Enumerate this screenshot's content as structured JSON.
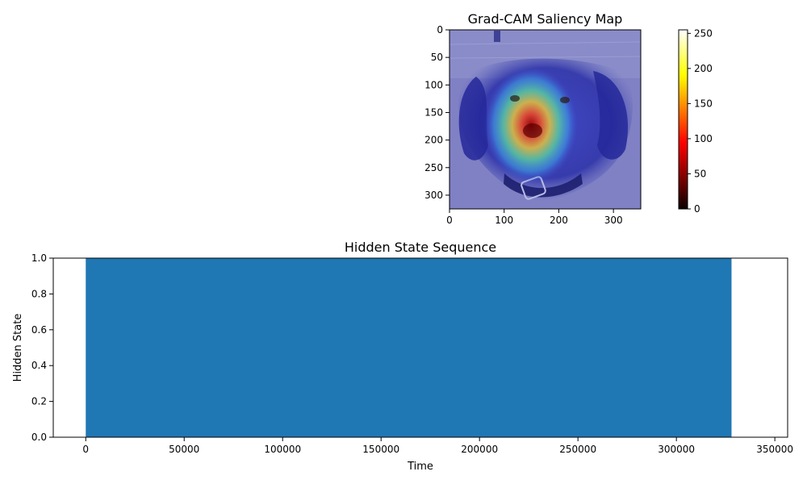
{
  "chart_data": [
    {
      "type": "heatmap",
      "title": "Grad-CAM Saliency Map",
      "xlabel": "",
      "ylabel": "",
      "xlim": [
        0,
        350
      ],
      "ylim": [
        325,
        0
      ],
      "x_ticks": [
        0,
        100,
        200,
        300
      ],
      "y_ticks": [
        0,
        50,
        100,
        150,
        200,
        250,
        300
      ],
      "overlay_fill_color": "#8080c4",
      "colorbar": {
        "colormap": "hot",
        "range": [
          0,
          255
        ],
        "ticks": [
          0,
          50,
          100,
          150,
          200,
          250
        ]
      }
    },
    {
      "type": "bar",
      "title": "Hidden State Sequence",
      "xlabel": "Time",
      "ylabel": "Hidden State",
      "xlim": [
        -16500,
        356500
      ],
      "ylim": [
        0,
        1
      ],
      "x_ticks": [
        0,
        50000,
        100000,
        150000,
        200000,
        250000,
        300000,
        350000
      ],
      "y_ticks": [
        "0.0",
        "0.2",
        "0.4",
        "0.6",
        "0.8",
        "1.0"
      ],
      "filled_span": {
        "x_start": 0,
        "x_end": 328000,
        "value": 1.0
      },
      "fill_color": "#1f77b4"
    }
  ]
}
